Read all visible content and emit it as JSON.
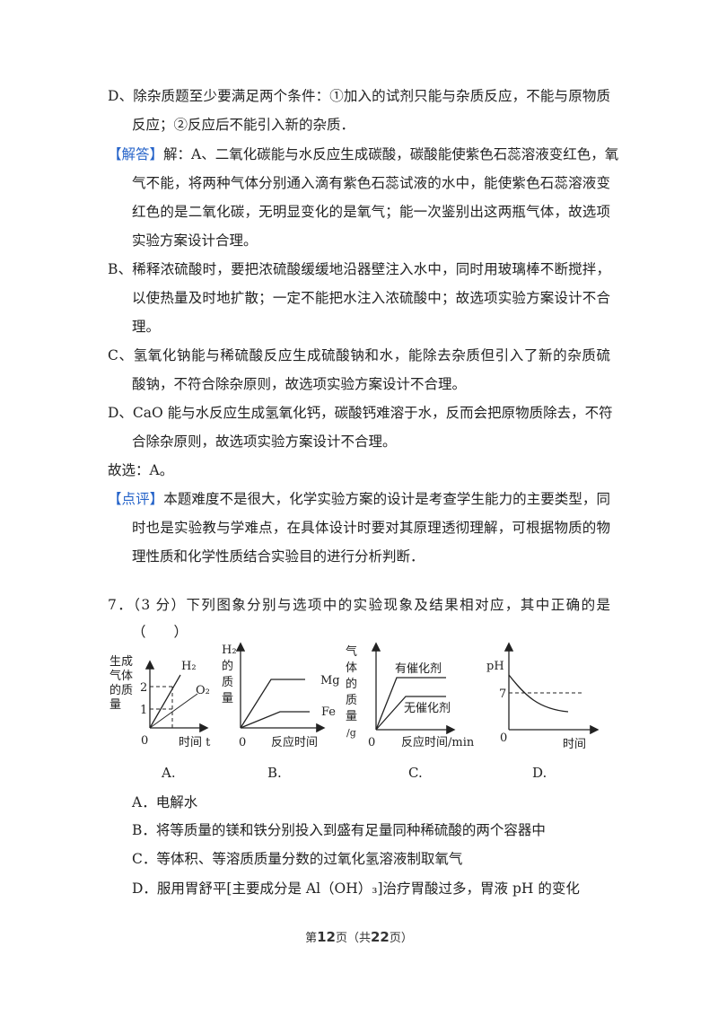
{
  "lines": {
    "l1": "D、除杂质题至少要满足两个条件：①加入的试剂只能与杂质反应，不能与原物质",
    "l2": "反应；②反应后不能引入新的杂质．",
    "l3_tag": "【解答】",
    "l3": "解：A、二氧化碳能与水反应生成碳酸，碳酸能使紫色石蕊溶液变红色，氧",
    "l4": "气不能，将两种气体分别通入滴有紫色石蕊试液的水中，能使紫色石蕊溶液变",
    "l5": "红色的是二氧化碳，无明显变化的是氧气；能一次鉴别出这两瓶气体，故选项",
    "l6": "实验方案设计合理。",
    "l7": "B、稀释浓硫酸时，要把浓硫酸缓缓地沿器壁注入水中，同时用玻璃棒不断搅拌，",
    "l8": "以使热量及时地扩散；一定不能把水注入浓硫酸中；故选项实验方案设计不合",
    "l9": "理。",
    "l10": "C、氢氧化钠能与稀硫酸反应生成硫酸钠和水，能除去杂质但引入了新的杂质硫",
    "l11": "酸钠，不符合除杂原则，故选项实验方案设计不合理。",
    "l12": "D、CaO 能与水反应生成氢氧化钙，碳酸钙难溶于水，反而会把原物质除去，不符",
    "l13": "合除杂原则，故选项实验方案设计不合理。",
    "l14": "故选：A。",
    "l15_tag": "【点评】",
    "l15": "本题难度不是很大，化学实验方案的设计是考查学生能力的主要类型，同",
    "l16": "时也是实验教与学难点，在具体设计时要对其原理透彻理解，可根据物质的物",
    "l17": "理性质和化学性质结合实验目的进行分析判断．"
  },
  "question": {
    "stem": "7．（3 分）下列图象分别与选项中的实验现象及结果相对应，其中正确的是",
    "blank": "（　　）",
    "options": [
      "A．电解水",
      "B．将等质量的镁和铁分别投入到盛有足量同种稀硫酸的两个容器中",
      "C．等体积、等溶质质量分数的过氧化氢溶液制取氧气",
      "D．服用胃舒平[主要成分是 Al（OH）₃]治疗胃酸过多，胃液 pH 的变化"
    ]
  },
  "figures": {
    "A": {
      "ylabel": [
        "生成",
        "气体",
        "的质",
        "量"
      ],
      "xlabel": "时间 t",
      "origin": "0",
      "ticks": [
        "1",
        "2"
      ],
      "series": [
        "H₂",
        "O₂"
      ],
      "caption": "A."
    },
    "B": {
      "ylabel": [
        "H₂",
        "的",
        "质",
        "量"
      ],
      "xlabel": "反应时间",
      "origin": "0",
      "series": [
        "Mg",
        "Fe"
      ],
      "caption": "B."
    },
    "C": {
      "ylabel": [
        "气",
        "体",
        "的",
        "质",
        "量",
        "/g"
      ],
      "xlabel": "反应时间/min",
      "origin": "0",
      "series": [
        "有催化剂",
        "无催化剂"
      ],
      "caption": "C."
    },
    "D": {
      "ylabel": "pH",
      "xlabel": "时间",
      "origin": "0",
      "ticks": [
        "7"
      ],
      "caption": "D."
    }
  },
  "footer": {
    "prefix": "第",
    "page": "12",
    "mid": "页（共",
    "total": "22",
    "suffix": "页）"
  },
  "colors": {
    "tag": "#2563c9",
    "text": "#222222"
  }
}
